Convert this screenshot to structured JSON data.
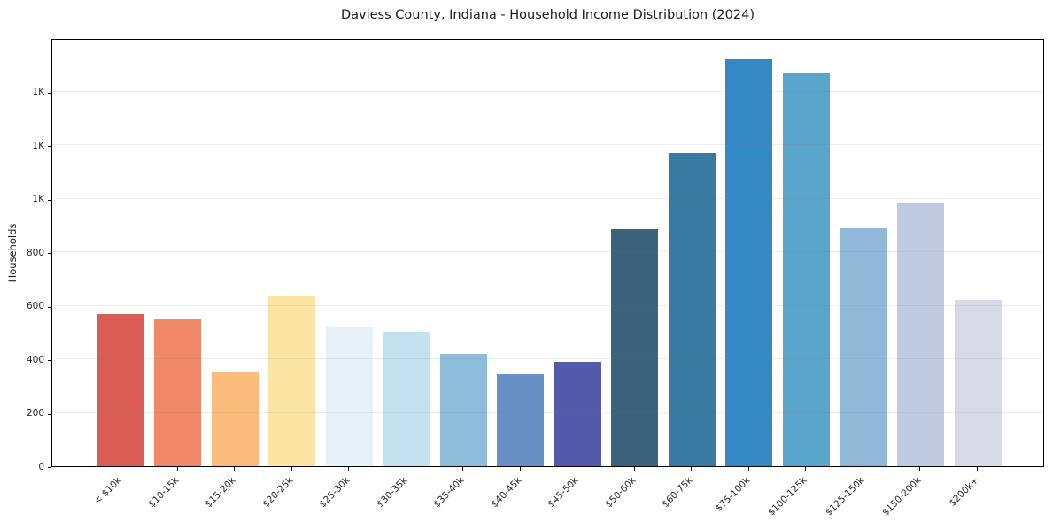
{
  "figure": {
    "background": "#ffffff",
    "spine_color": "#000000",
    "grid_color": "rgba(120,120,130,0.13)"
  },
  "chart_data": {
    "type": "bar",
    "title": "Daviess County, Indiana - Household Income Distribution (2024)",
    "xlabel": "",
    "ylabel": "Households",
    "categories": [
      "< $10k",
      "$10-15k",
      "$15-20k",
      "$20-25k",
      "$25-30k",
      "$30-35k",
      "$35-40k",
      "$40-45k",
      "$45-50k",
      "$50-60k",
      "$60-75k",
      "$75-100k",
      "$100-125k",
      "$125-150k",
      "$150-200k",
      "$200k+"
    ],
    "values": [
      569,
      549,
      351,
      636,
      520,
      502,
      419,
      344,
      390,
      886,
      1171,
      1522,
      1467,
      889,
      982,
      621
    ],
    "bar_colors": [
      "#d95c55",
      "#f08766",
      "#fabb7b",
      "#fce5a2",
      "#e7f2f8",
      "#c3e1ee",
      "#8ebcdb",
      "#6890c4",
      "#5559aa",
      "#3a627b",
      "#3a7aa2",
      "#3389c4",
      "#5aa5cb",
      "#91b8d8",
      "#bfcbe0",
      "#d8dae8"
    ],
    "ylim": [
      0,
      1600
    ],
    "yticks": [
      {
        "value": 0,
        "label": "0"
      },
      {
        "value": 200,
        "label": "200"
      },
      {
        "value": 400,
        "label": "400"
      },
      {
        "value": 600,
        "label": "600"
      },
      {
        "value": 800,
        "label": "800"
      },
      {
        "value": 1000,
        "label": "1K"
      },
      {
        "value": 1200,
        "label": "1K"
      },
      {
        "value": 1400,
        "label": "1K"
      }
    ],
    "grid": "horizontal",
    "legend_position": "none"
  }
}
